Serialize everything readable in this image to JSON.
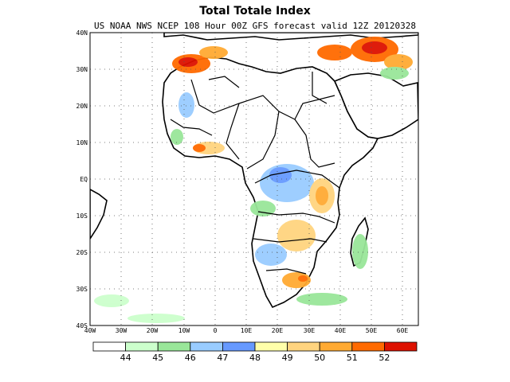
{
  "title": "Total Totale Index",
  "subtitle": "US NOAA NWS NCEP 108 Hour 00Z GFS forecast valid 12Z 20120328",
  "map": {
    "lon_range": [
      -40,
      65
    ],
    "lat_range": [
      -40,
      40
    ],
    "lat_labels": [
      "40N",
      "30N",
      "20N",
      "10N",
      "EQ",
      "10S",
      "20S",
      "30S",
      "40S"
    ],
    "lon_labels": [
      "40W",
      "30W",
      "20W",
      "10W",
      "0",
      "10E",
      "20E",
      "30E",
      "40E",
      "50E",
      "60E"
    ],
    "grid": "dotted",
    "land_color": "#ffffff",
    "border_color": "#000000"
  },
  "colorbar": {
    "colors": [
      "#ffffff",
      "#ccffcc",
      "#99e699",
      "#99ccff",
      "#6699ff",
      "#ffffaa",
      "#ffd47f",
      "#ffaa33",
      "#ff6a00",
      "#dd1100"
    ],
    "labels": [
      "44",
      "45",
      "46",
      "47",
      "48",
      "49",
      "50",
      "51",
      "52"
    ]
  }
}
